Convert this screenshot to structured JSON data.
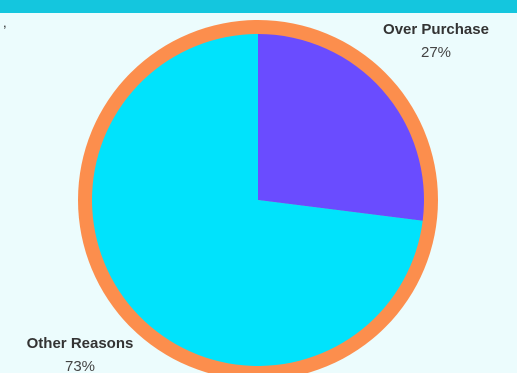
{
  "colors": {
    "background": "#ecfcfd",
    "top_bar": "#14c6de",
    "ring": "#fc8e4d",
    "text": "#333333"
  },
  "stray_mark": ",",
  "chart_data": {
    "type": "pie",
    "title": "",
    "slices": [
      {
        "label": "Over Purchase",
        "value": 27,
        "value_label": "27%",
        "color": "#6a4cff"
      },
      {
        "label": "Other Reasons",
        "value": 73,
        "value_label": "73%",
        "color": "#00e3fc"
      }
    ],
    "start_angle_deg": 0,
    "direction": "clockwise",
    "legend": "none",
    "data_labels": "outside"
  }
}
